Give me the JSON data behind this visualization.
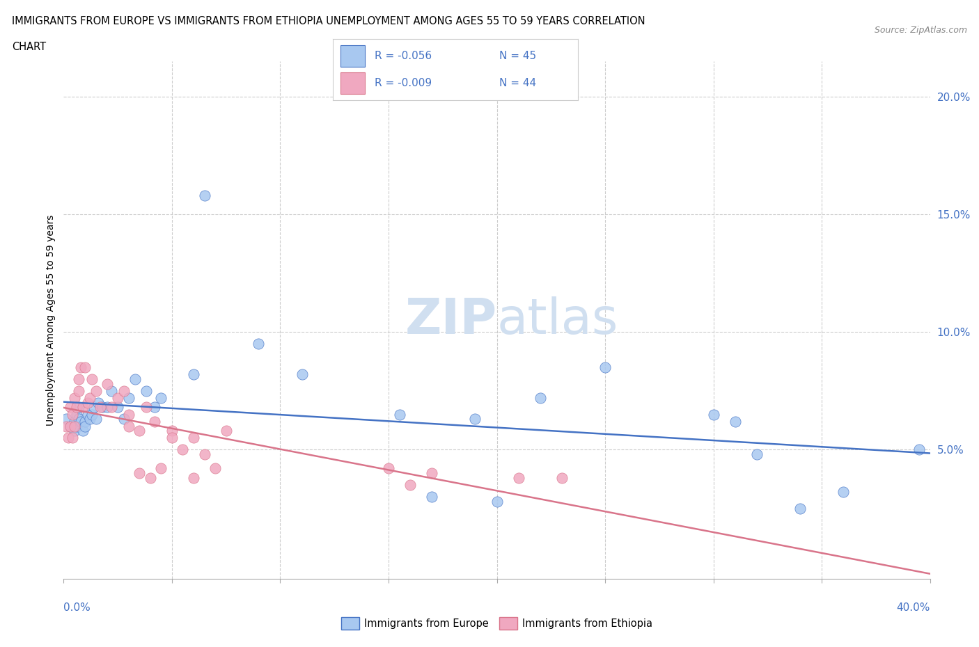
{
  "title_line1": "IMMIGRANTS FROM EUROPE VS IMMIGRANTS FROM ETHIOPIA UNEMPLOYMENT AMONG AGES 55 TO 59 YEARS CORRELATION",
  "title_line2": "CHART",
  "source": "Source: ZipAtlas.com",
  "ylabel": "Unemployment Among Ages 55 to 59 years",
  "ytick_values": [
    0.05,
    0.1,
    0.15,
    0.2
  ],
  "europe_color": "#a8c8f0",
  "ethiopia_color": "#f0a8c0",
  "europe_line_color": "#4472c4",
  "ethiopia_line_color": "#d9748a",
  "watermark_color": "#d0dff0",
  "background_color": "#ffffff",
  "europe_x": [
    0.001,
    0.003,
    0.004,
    0.005,
    0.005,
    0.006,
    0.006,
    0.007,
    0.007,
    0.008,
    0.009,
    0.01,
    0.01,
    0.011,
    0.012,
    0.013,
    0.014,
    0.015,
    0.016,
    0.018,
    0.02,
    0.022,
    0.025,
    0.028,
    0.03,
    0.033,
    0.038,
    0.042,
    0.045,
    0.06,
    0.065,
    0.09,
    0.11,
    0.155,
    0.19,
    0.22,
    0.25,
    0.3,
    0.31,
    0.32,
    0.17,
    0.2,
    0.34,
    0.36,
    0.395
  ],
  "europe_y": [
    0.063,
    0.06,
    0.06,
    0.062,
    0.058,
    0.065,
    0.06,
    0.063,
    0.068,
    0.062,
    0.058,
    0.062,
    0.06,
    0.065,
    0.063,
    0.065,
    0.068,
    0.063,
    0.07,
    0.068,
    0.068,
    0.075,
    0.068,
    0.063,
    0.072,
    0.08,
    0.075,
    0.068,
    0.072,
    0.082,
    0.158,
    0.095,
    0.082,
    0.065,
    0.063,
    0.072,
    0.085,
    0.065,
    0.062,
    0.048,
    0.03,
    0.028,
    0.025,
    0.032,
    0.05
  ],
  "ethiopia_x": [
    0.001,
    0.002,
    0.003,
    0.003,
    0.004,
    0.004,
    0.005,
    0.005,
    0.006,
    0.007,
    0.007,
    0.008,
    0.009,
    0.01,
    0.011,
    0.012,
    0.013,
    0.015,
    0.017,
    0.02,
    0.022,
    0.025,
    0.028,
    0.03,
    0.03,
    0.035,
    0.038,
    0.042,
    0.05,
    0.05,
    0.055,
    0.06,
    0.065,
    0.07,
    0.075,
    0.035,
    0.04,
    0.045,
    0.06,
    0.15,
    0.16,
    0.17,
    0.21,
    0.23
  ],
  "ethiopia_y": [
    0.06,
    0.055,
    0.068,
    0.06,
    0.055,
    0.065,
    0.072,
    0.06,
    0.068,
    0.075,
    0.08,
    0.085,
    0.068,
    0.085,
    0.07,
    0.072,
    0.08,
    0.075,
    0.068,
    0.078,
    0.068,
    0.072,
    0.075,
    0.065,
    0.06,
    0.058,
    0.068,
    0.062,
    0.058,
    0.055,
    0.05,
    0.055,
    0.048,
    0.042,
    0.058,
    0.04,
    0.038,
    0.042,
    0.038,
    0.042,
    0.035,
    0.04,
    0.038,
    0.038
  ],
  "xlim": [
    0.0,
    0.4
  ],
  "ylim": [
    -0.005,
    0.215
  ],
  "xgrid_values": [
    0.05,
    0.1,
    0.15,
    0.2,
    0.25,
    0.3,
    0.35
  ],
  "ygrid_values": [
    0.05,
    0.1,
    0.15,
    0.2
  ]
}
